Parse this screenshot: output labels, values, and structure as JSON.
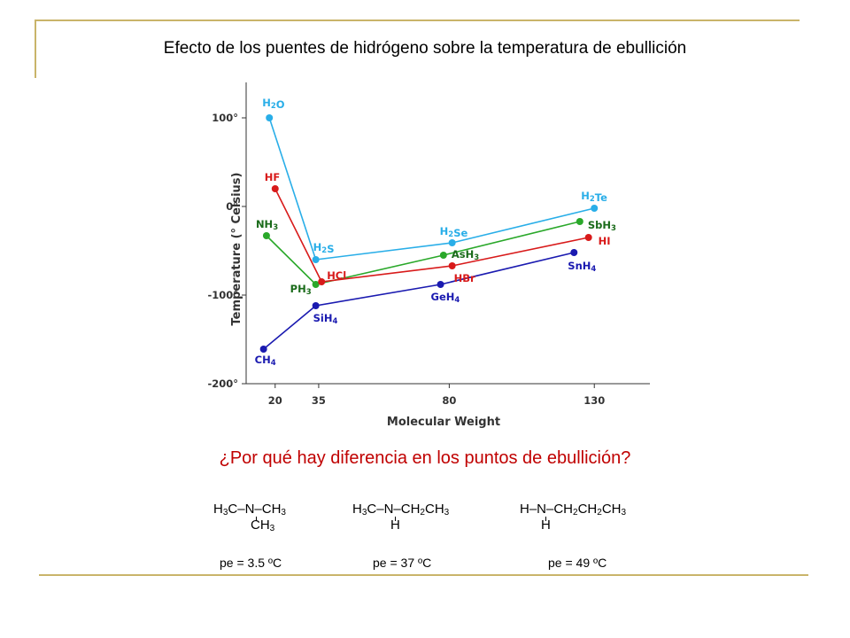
{
  "title": "Efecto de los puentes de hidrógeno sobre la temperatura de ebullición",
  "question": "¿Por qué hay diferencia en los puntos de ebullición?",
  "colors": {
    "question": "#c00000",
    "decor": "#c9b46a",
    "group14": "#1a1ab0",
    "group15": "#2aa82a",
    "group16": "#29aee8",
    "group17": "#d81a1a",
    "label14": "#1a1ab0",
    "label15": "#1a6b1a",
    "label16": "#29aee8",
    "label17": "#d81a1a"
  },
  "chart_data": {
    "type": "line",
    "xlabel": "Molecular Weight",
    "ylabel": "Temperature (° Celsius)",
    "xlim": [
      10,
      140
    ],
    "ylim": [
      -200,
      140
    ],
    "x_ticks": [
      {
        "value": 20,
        "label": "20"
      },
      {
        "value": 35,
        "label": "35"
      },
      {
        "value": 80,
        "label": "80"
      },
      {
        "value": 130,
        "label": "130"
      }
    ],
    "y_ticks": [
      {
        "value": 100,
        "label": "100°"
      },
      {
        "value": 0,
        "label": "0°"
      },
      {
        "value": -100,
        "label": "-100°"
      },
      {
        "value": -200,
        "label": "-200°"
      }
    ],
    "series": [
      {
        "group": "group14",
        "points": [
          {
            "x": 16,
            "y": -161,
            "label": "CH4"
          },
          {
            "x": 34,
            "y": -112,
            "label": "SiH4"
          },
          {
            "x": 77,
            "y": -88,
            "label": "GeH4"
          },
          {
            "x": 123,
            "y": -52,
            "label": "SnH4"
          }
        ]
      },
      {
        "group": "group15",
        "points": [
          {
            "x": 17,
            "y": -33,
            "label": "NH3"
          },
          {
            "x": 34,
            "y": -88,
            "label": "PH3"
          },
          {
            "x": 78,
            "y": -55,
            "label": "AsH3"
          },
          {
            "x": 125,
            "y": -17,
            "label": "SbH3"
          }
        ]
      },
      {
        "group": "group16",
        "points": [
          {
            "x": 18,
            "y": 100,
            "label": "H2O"
          },
          {
            "x": 34,
            "y": -60,
            "label": "H2S"
          },
          {
            "x": 81,
            "y": -41,
            "label": "H2Se"
          },
          {
            "x": 130,
            "y": -2,
            "label": "H2Te"
          }
        ]
      },
      {
        "group": "group17",
        "points": [
          {
            "x": 20,
            "y": 20,
            "label": "HF"
          },
          {
            "x": 36,
            "y": -85,
            "label": "HCl"
          },
          {
            "x": 81,
            "y": -67,
            "label": "HBr"
          },
          {
            "x": 128,
            "y": -35,
            "label": "HI"
          }
        ]
      }
    ]
  },
  "molecules": [
    {
      "line1": [
        "H",
        "3",
        "C–N–CH",
        "3"
      ],
      "line2": [
        "CH",
        "3"
      ],
      "pe": "pe = 3.5 ºC"
    },
    {
      "line1": [
        "H",
        "3",
        "C–N–CH",
        "2",
        "CH",
        "3"
      ],
      "line2": [
        "H",
        ""
      ],
      "pe": "pe = 37 ºC"
    },
    {
      "line1": [
        "H–N–CH",
        "2",
        "CH",
        "2",
        "CH",
        "3"
      ],
      "line2": [
        "H",
        ""
      ],
      "pe": "pe = 49 ºC"
    }
  ]
}
